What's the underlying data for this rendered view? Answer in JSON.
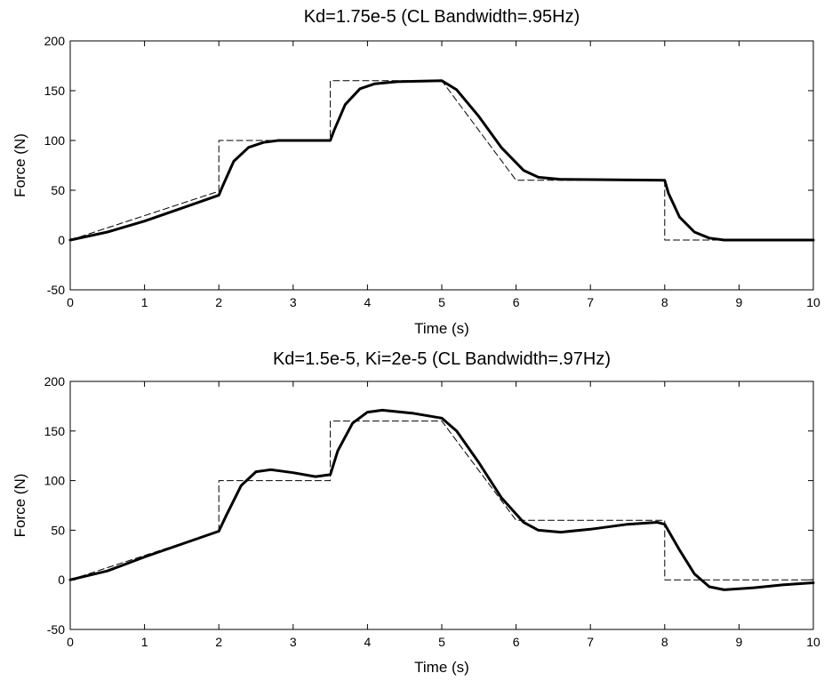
{
  "chart_data": [
    {
      "type": "line",
      "title": "Kd=1.75e-5    (CL Bandwidth=.95Hz)",
      "xlabel": "Time (s)",
      "ylabel": "Force (N)",
      "xlim": [
        0,
        10
      ],
      "ylim": [
        -50,
        200
      ],
      "xticks": [
        "0",
        "1",
        "2",
        "3",
        "4",
        "5",
        "6",
        "7",
        "8",
        "9",
        "10"
      ],
      "yticks": [
        "-50",
        "0",
        "50",
        "100",
        "150",
        "200"
      ],
      "grid": false,
      "series": [
        {
          "style": "dashed",
          "color": "#000000",
          "points": [
            [
              0,
              0
            ],
            [
              2,
              49
            ],
            [
              2,
              100
            ],
            [
              3.5,
              100
            ],
            [
              3.5,
              160
            ],
            [
              5,
              160
            ],
            [
              6,
              60
            ],
            [
              8,
              60
            ],
            [
              8,
              0
            ],
            [
              10,
              0
            ]
          ]
        },
        {
          "style": "solid-thick",
          "color": "#000000",
          "points": [
            [
              0,
              0
            ],
            [
              0.5,
              8
            ],
            [
              1,
              19
            ],
            [
              1.5,
              32
            ],
            [
              2,
              45
            ],
            [
              2.05,
              54
            ],
            [
              2.2,
              79
            ],
            [
              2.4,
              93
            ],
            [
              2.6,
              98
            ],
            [
              2.8,
              100
            ],
            [
              3.5,
              100
            ],
            [
              3.55,
              110
            ],
            [
              3.7,
              136
            ],
            [
              3.9,
              152
            ],
            [
              4.1,
              157
            ],
            [
              4.4,
              159
            ],
            [
              5,
              160
            ],
            [
              5.2,
              151
            ],
            [
              5.5,
              124
            ],
            [
              5.8,
              93
            ],
            [
              6.1,
              70
            ],
            [
              6.3,
              63
            ],
            [
              6.6,
              61
            ],
            [
              8,
              60
            ],
            [
              8.05,
              47
            ],
            [
              8.2,
              23
            ],
            [
              8.4,
              8
            ],
            [
              8.6,
              2
            ],
            [
              8.8,
              0
            ],
            [
              10,
              0
            ]
          ]
        }
      ]
    },
    {
      "type": "line",
      "title": "Kd=1.5e-5, Ki=2e-5    (CL Bandwidth=.97Hz)",
      "xlabel": "Time (s)",
      "ylabel": "Force (N)",
      "xlim": [
        0,
        10
      ],
      "ylim": [
        -50,
        200
      ],
      "xticks": [
        "0",
        "1",
        "2",
        "3",
        "4",
        "5",
        "6",
        "7",
        "8",
        "9",
        "10"
      ],
      "yticks": [
        "-50",
        "0",
        "50",
        "100",
        "150",
        "200"
      ],
      "grid": false,
      "series": [
        {
          "style": "dashed",
          "color": "#000000",
          "points": [
            [
              0,
              0
            ],
            [
              2,
              49
            ],
            [
              2,
              100
            ],
            [
              3.5,
              100
            ],
            [
              3.5,
              160
            ],
            [
              5,
              160
            ],
            [
              6,
              60
            ],
            [
              8,
              60
            ],
            [
              8,
              0
            ],
            [
              10,
              0
            ]
          ]
        },
        {
          "style": "solid-thick",
          "color": "#000000",
          "points": [
            [
              0,
              0
            ],
            [
              0.5,
              9
            ],
            [
              1,
              23
            ],
            [
              1.5,
              36
            ],
            [
              2,
              49
            ],
            [
              2.1,
              65
            ],
            [
              2.3,
              95
            ],
            [
              2.5,
              109
            ],
            [
              2.7,
              111
            ],
            [
              3.0,
              108
            ],
            [
              3.3,
              104
            ],
            [
              3.5,
              106
            ],
            [
              3.6,
              130
            ],
            [
              3.8,
              158
            ],
            [
              4.0,
              169
            ],
            [
              4.2,
              171
            ],
            [
              4.6,
              168
            ],
            [
              5.0,
              163
            ],
            [
              5.2,
              150
            ],
            [
              5.5,
              118
            ],
            [
              5.8,
              83
            ],
            [
              6.1,
              58
            ],
            [
              6.3,
              50
            ],
            [
              6.6,
              48
            ],
            [
              7.0,
              51
            ],
            [
              7.5,
              56
            ],
            [
              7.9,
              58
            ],
            [
              8.0,
              56
            ],
            [
              8.2,
              30
            ],
            [
              8.4,
              6
            ],
            [
              8.6,
              -7
            ],
            [
              8.8,
              -10
            ],
            [
              9.2,
              -8
            ],
            [
              9.6,
              -5
            ],
            [
              10,
              -3
            ]
          ]
        }
      ]
    }
  ]
}
